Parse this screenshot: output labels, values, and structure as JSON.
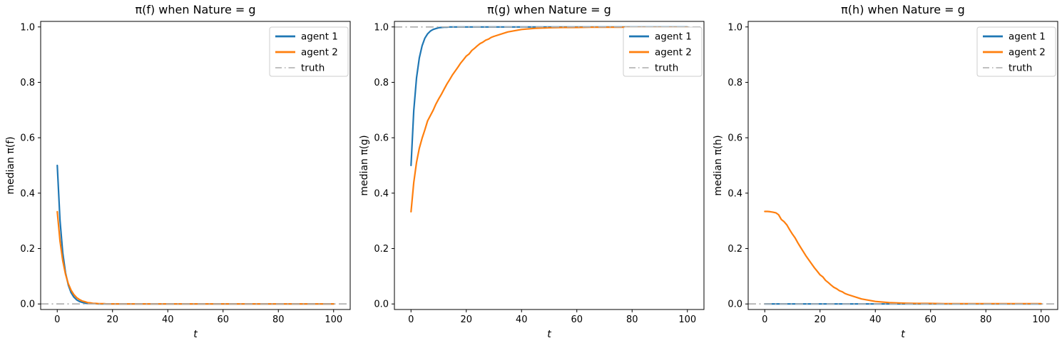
{
  "figure": {
    "background": "#ffffff"
  },
  "colors": {
    "agent1": "#1f77b4",
    "agent2": "#ff7f0e",
    "truth": "#ababab",
    "spine": "#000000",
    "legend_edge": "#cccccc",
    "legend_fill": "#ffffff"
  },
  "chart_data": [
    {
      "type": "line",
      "title": "π(f) when Nature = g",
      "xlabel": "t",
      "ylabel": "median π(f)",
      "xlim": [
        -6,
        106
      ],
      "ylim": [
        -0.02,
        1.02
      ],
      "xticks": [
        0,
        20,
        40,
        60,
        80,
        100
      ],
      "ytick_values": [
        0.0,
        0.2,
        0.4,
        0.6,
        0.8,
        1.0
      ],
      "ytick_labels": [
        "0.0",
        "0.2",
        "0.4",
        "0.6",
        "0.8",
        "1.0"
      ],
      "legend_position": "upper right",
      "grid": false,
      "x": [
        0,
        1,
        2,
        3,
        4,
        5,
        6,
        7,
        8,
        9,
        10,
        11,
        12,
        13,
        14,
        15,
        16,
        17,
        18,
        19,
        20,
        21,
        22,
        23,
        24,
        25,
        26,
        27,
        28,
        29,
        30,
        35,
        40,
        45,
        50,
        55,
        60,
        65,
        70,
        75,
        80,
        85,
        90,
        95,
        100
      ],
      "series": [
        {
          "name": "agent 1",
          "color": "#1f77b4",
          "values": [
            0.5,
            0.303,
            0.184,
            0.112,
            0.068,
            0.041,
            0.025,
            0.015,
            0.009,
            0.006,
            0.003,
            0.002,
            0.001,
            0.001,
            0.001,
            0,
            0,
            0,
            0,
            0,
            0,
            0,
            0,
            0,
            0,
            0,
            0,
            0,
            0,
            0,
            0,
            0,
            0,
            0,
            0,
            0,
            0,
            0,
            0,
            0,
            0,
            0,
            0,
            0,
            0
          ]
        },
        {
          "name": "agent 2",
          "color": "#ff7f0e",
          "values": [
            0.333,
            0.228,
            0.156,
            0.107,
            0.073,
            0.05,
            0.034,
            0.023,
            0.016,
            0.011,
            0.008,
            0.005,
            0.004,
            0.002,
            0.002,
            0.001,
            0.001,
            0.001,
            0,
            0,
            0,
            0,
            0,
            0,
            0,
            0,
            0,
            0,
            0,
            0,
            0,
            0,
            0,
            0,
            0,
            0,
            0,
            0,
            0,
            0,
            0,
            0,
            0,
            0,
            0
          ]
        }
      ],
      "truth": {
        "name": "truth",
        "value": 0.0,
        "color": "#ababab",
        "style": "dashdot"
      },
      "legend": [
        "agent 1",
        "agent 2",
        "truth"
      ]
    },
    {
      "type": "line",
      "title": "π(g) when Nature = g",
      "xlabel": "t",
      "ylabel": "median π(g)",
      "xlim": [
        -6,
        106
      ],
      "ylim": [
        -0.02,
        1.02
      ],
      "xticks": [
        0,
        20,
        40,
        60,
        80,
        100
      ],
      "ytick_values": [
        0.0,
        0.2,
        0.4,
        0.6,
        0.8,
        1.0
      ],
      "ytick_labels": [
        "0.0",
        "0.2",
        "0.4",
        "0.6",
        "0.8",
        "1.0"
      ],
      "legend_position": "upper right",
      "grid": false,
      "x": [
        0,
        1,
        2,
        3,
        4,
        5,
        6,
        7,
        8,
        9,
        10,
        11,
        12,
        13,
        14,
        15,
        16,
        17,
        18,
        19,
        20,
        21,
        22,
        23,
        24,
        25,
        26,
        27,
        28,
        29,
        30,
        35,
        40,
        45,
        50,
        55,
        60,
        65,
        70,
        75,
        80,
        85,
        90,
        95,
        100
      ],
      "series": [
        {
          "name": "agent 1",
          "color": "#1f77b4",
          "values": [
            0.5,
            0.697,
            0.816,
            0.888,
            0.932,
            0.959,
            0.975,
            0.985,
            0.991,
            0.994,
            0.997,
            0.998,
            0.999,
            0.999,
            1,
            1,
            1,
            1,
            1,
            1,
            1,
            1,
            1,
            1,
            1,
            1,
            1,
            1,
            1,
            1,
            1,
            1,
            1,
            1,
            1,
            1,
            1,
            1,
            1,
            1,
            1,
            1,
            1,
            1,
            1
          ]
        },
        {
          "name": "agent 2",
          "color": "#ff7f0e",
          "values": [
            0.333,
            0.438,
            0.511,
            0.562,
            0.598,
            0.628,
            0.661,
            0.68,
            0.699,
            0.721,
            0.74,
            0.757,
            0.776,
            0.794,
            0.81,
            0.827,
            0.841,
            0.855,
            0.87,
            0.882,
            0.895,
            0.902,
            0.915,
            0.923,
            0.932,
            0.94,
            0.945,
            0.952,
            0.956,
            0.962,
            0.966,
            0.982,
            0.991,
            0.995,
            0.997,
            0.998,
            0.998,
            0.999,
            0.999,
            0.999,
            0.999,
            0.999,
            0.999,
            0.999,
            0.999
          ]
        }
      ],
      "truth": {
        "name": "truth",
        "value": 1.0,
        "color": "#ababab",
        "style": "dashdot"
      },
      "legend": [
        "agent 1",
        "agent 2",
        "truth"
      ]
    },
    {
      "type": "line",
      "title": "π(h) when Nature = g",
      "xlabel": "t",
      "ylabel": "median π(h)",
      "xlim": [
        -6,
        106
      ],
      "ylim": [
        -0.02,
        1.02
      ],
      "xticks": [
        0,
        20,
        40,
        60,
        80,
        100
      ],
      "ytick_values": [
        0.0,
        0.2,
        0.4,
        0.6,
        0.8,
        1.0
      ],
      "ytick_labels": [
        "0.0",
        "0.2",
        "0.4",
        "0.6",
        "0.8",
        "1.0"
      ],
      "legend_position": "upper right",
      "grid": false,
      "x": [
        0,
        1,
        2,
        3,
        4,
        5,
        6,
        7,
        8,
        9,
        10,
        11,
        12,
        13,
        14,
        15,
        16,
        17,
        18,
        19,
        20,
        21,
        22,
        23,
        24,
        25,
        26,
        27,
        28,
        29,
        30,
        35,
        40,
        45,
        50,
        55,
        60,
        65,
        70,
        75,
        80,
        85,
        90,
        95,
        100
      ],
      "series": [
        {
          "name": "agent 1",
          "color": "#1f77b4",
          "values": [
            0,
            0,
            0,
            0,
            0,
            0,
            0,
            0,
            0,
            0,
            0,
            0,
            0,
            0,
            0,
            0,
            0,
            0,
            0,
            0,
            0,
            0,
            0,
            0,
            0,
            0,
            0,
            0,
            0,
            0,
            0,
            0,
            0,
            0,
            0,
            0,
            0,
            0,
            0,
            0,
            0,
            0,
            0,
            0,
            0
          ]
        },
        {
          "name": "agent 2",
          "color": "#ff7f0e",
          "values": [
            0.334,
            0.334,
            0.333,
            0.331,
            0.329,
            0.322,
            0.305,
            0.297,
            0.285,
            0.268,
            0.252,
            0.238,
            0.22,
            0.204,
            0.188,
            0.172,
            0.158,
            0.144,
            0.13,
            0.118,
            0.105,
            0.098,
            0.085,
            0.077,
            0.068,
            0.06,
            0.055,
            0.048,
            0.044,
            0.038,
            0.034,
            0.018,
            0.009,
            0.005,
            0.003,
            0.002,
            0.002,
            0.001,
            0.001,
            0.001,
            0.001,
            0.001,
            0.001,
            0.001,
            0.001
          ]
        }
      ],
      "truth": {
        "name": "truth",
        "value": 0.0,
        "color": "#ababab",
        "style": "dashdot"
      },
      "legend": [
        "agent 1",
        "agent 2",
        "truth"
      ]
    }
  ]
}
